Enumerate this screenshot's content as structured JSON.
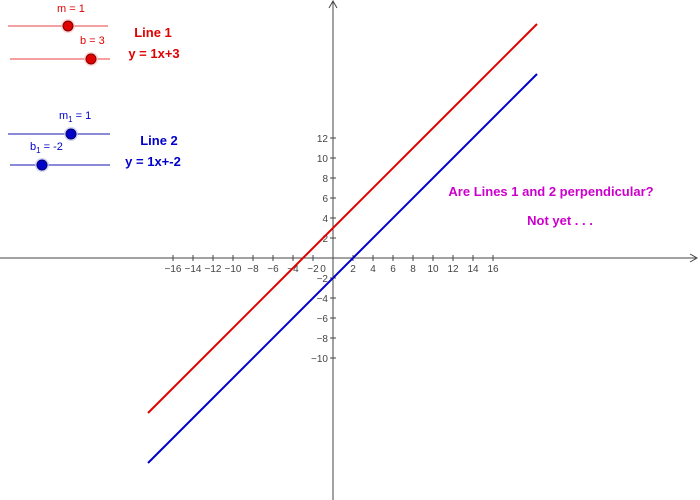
{
  "colors": {
    "line1": "#e00000",
    "line2": "#0000c8",
    "message": "#cc00cc",
    "axis": "#444444",
    "slider1_track": "#f4a0a0",
    "slider2_track": "#8a8ad8"
  },
  "axes": {
    "x_range": [
      -16.5,
      18.4
    ],
    "y_range": [
      -12.2,
      12.6
    ],
    "x_ticks": [
      "−16",
      "−14",
      "−12",
      "−10",
      "−8",
      "−6",
      "−4",
      "−2",
      "0",
      "2",
      "4",
      "6",
      "8",
      "10",
      "12",
      "14",
      "16"
    ],
    "y_ticks": [
      "12",
      "10",
      "8",
      "6",
      "4",
      "2",
      "−2",
      "−4",
      "−6",
      "−8",
      "−10"
    ],
    "tick_step": 2
  },
  "line1": {
    "title": "Line 1",
    "equation": "y = 1x+3",
    "m": 1,
    "b": 3,
    "slider_m_caption": "m = 1",
    "slider_b_caption": "b = 3",
    "icon": "red-slider-knob"
  },
  "line2": {
    "title": "Line 2",
    "equation": "y = 1x+-2",
    "m": 1,
    "b": -2,
    "slider_m_name": "m",
    "slider_m_sub": "1",
    "slider_m_value": " = 1",
    "slider_b_name": "b",
    "slider_b_sub": "1",
    "slider_b_value": " = -2",
    "icon": "blue-slider-knob"
  },
  "question": "Are Lines 1 and 2 perpendicular?",
  "answer": "Not yet . . ."
}
